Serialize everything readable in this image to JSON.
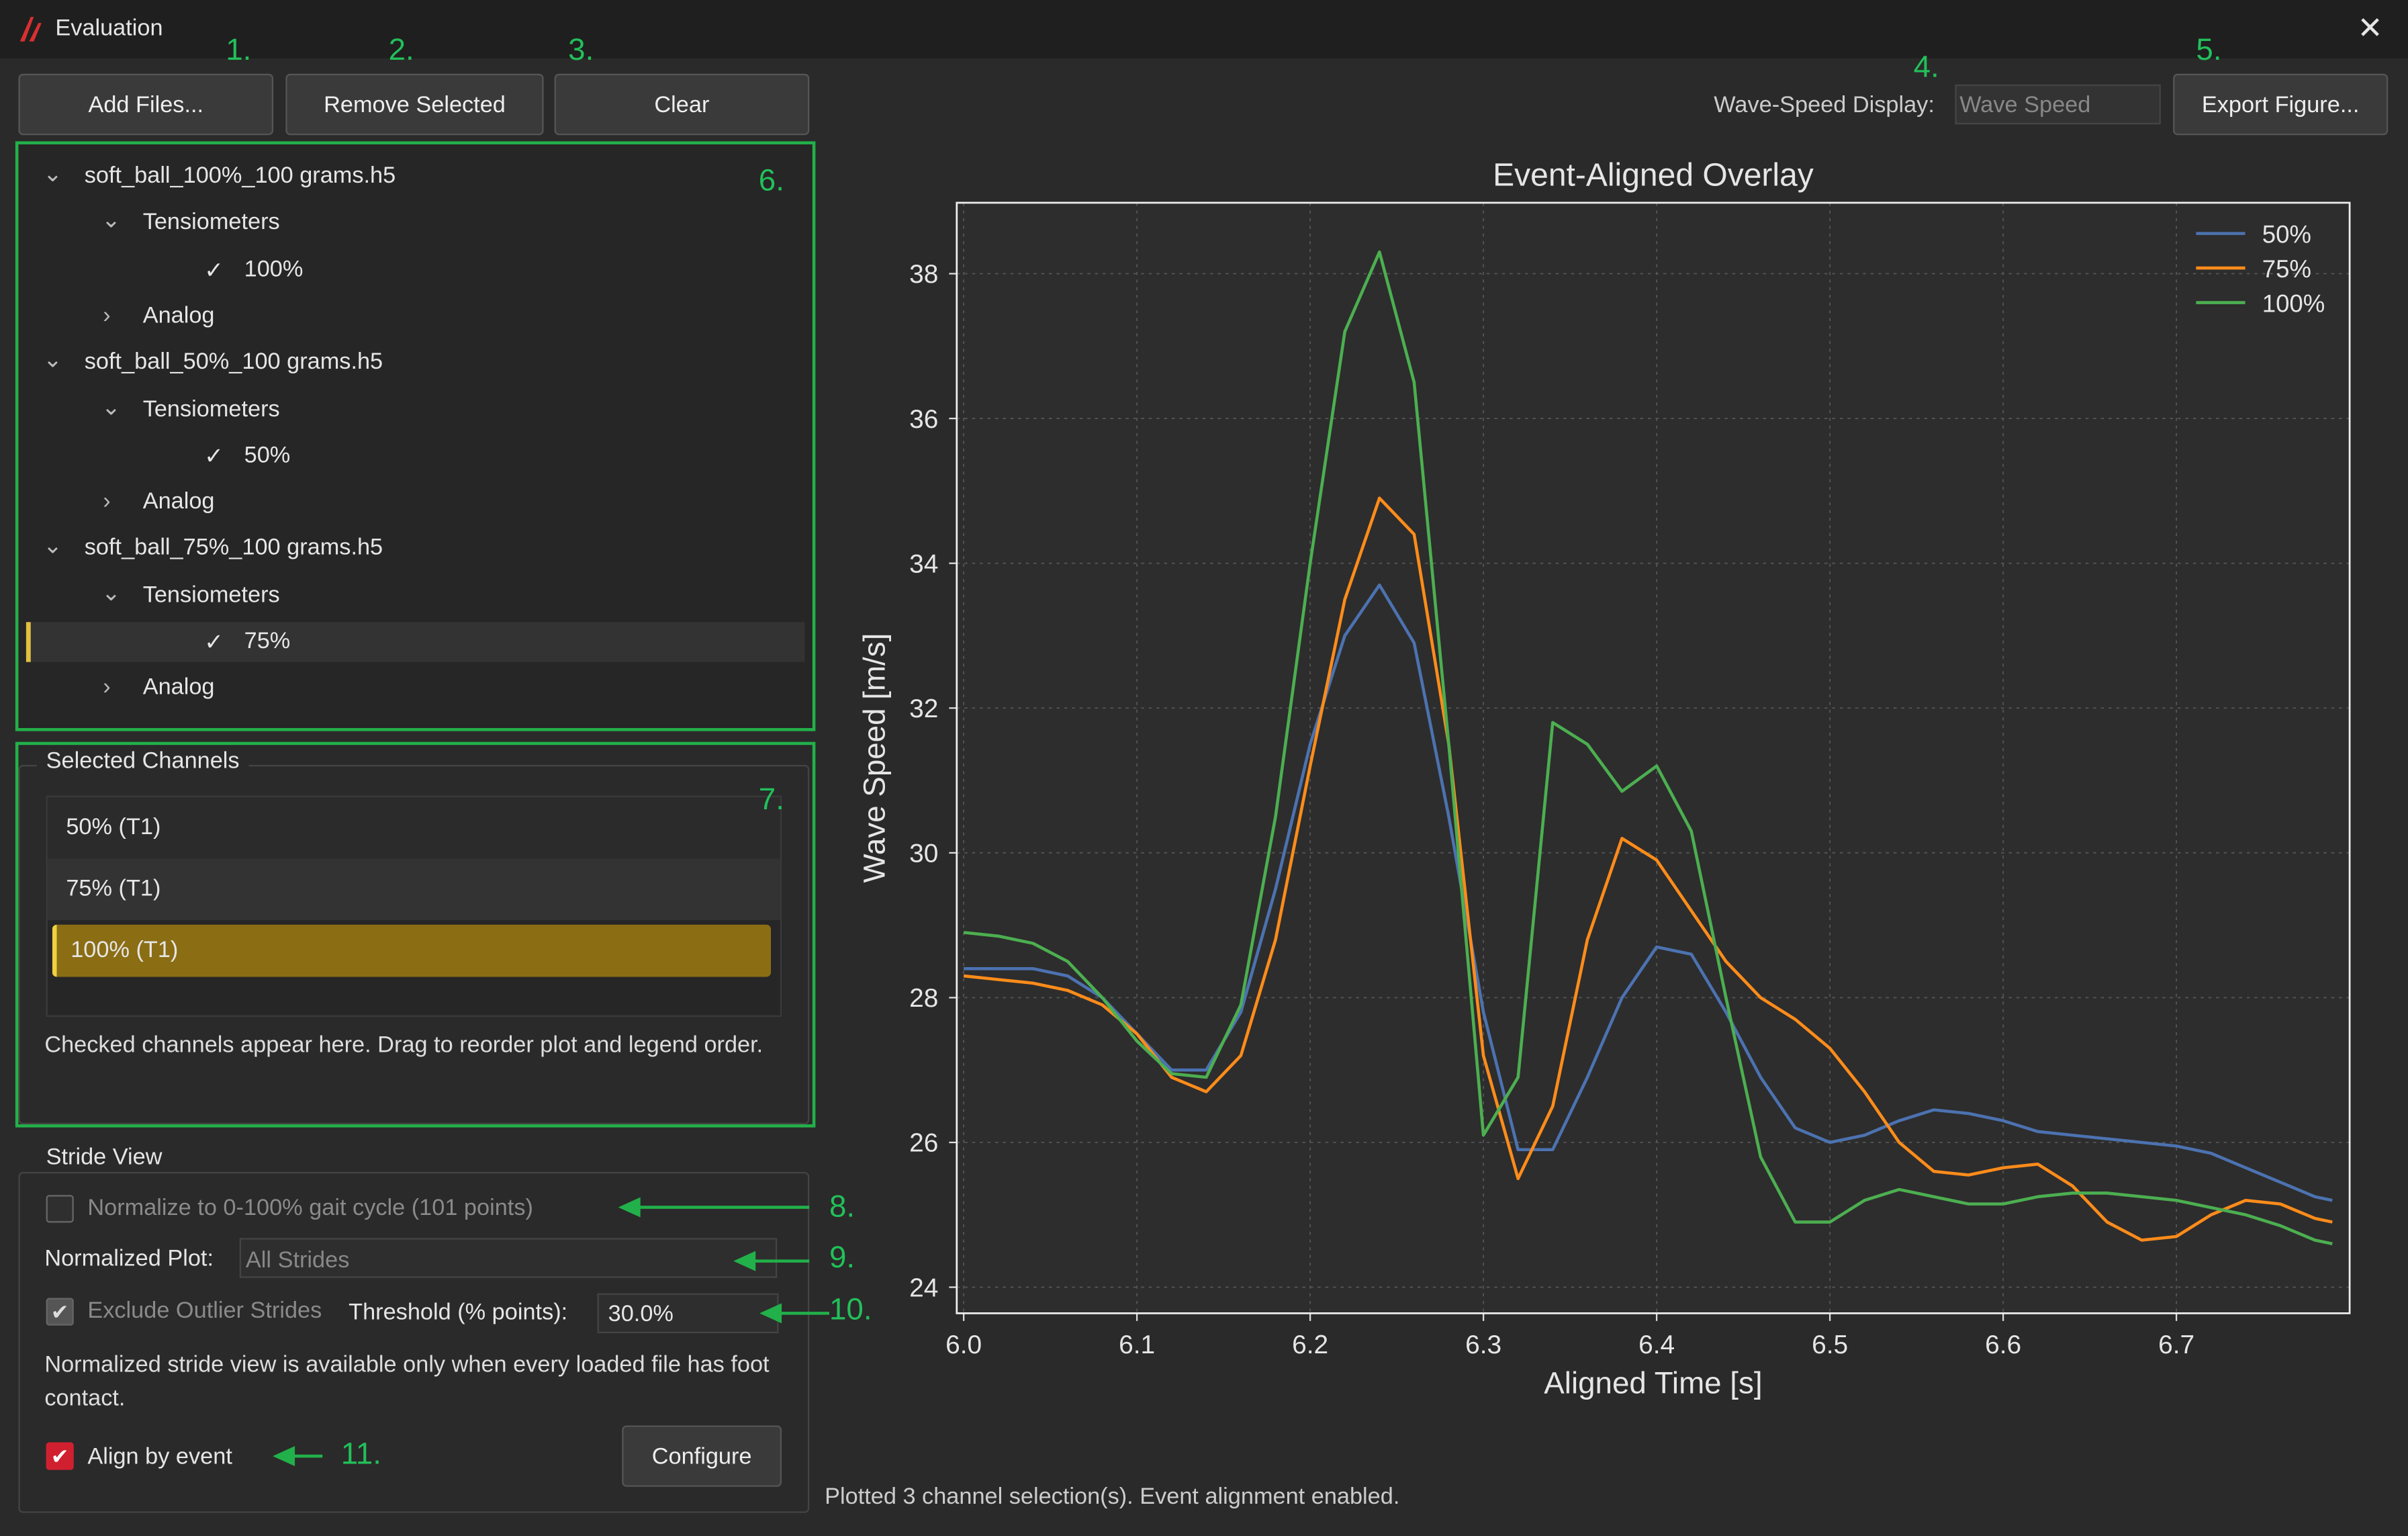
{
  "window": {
    "title": "Evaluation"
  },
  "toolbar": {
    "buttons": [
      "Add Files...",
      "Remove Selected",
      "Clear"
    ],
    "wave_speed_label": "Wave-Speed Display:",
    "wave_speed_value": "Wave Speed",
    "export": "Export Figure..."
  },
  "annotations": [
    "1.",
    "2.",
    "3.",
    "4.",
    "5.",
    "6.",
    "7.",
    "8.",
    "9.",
    "10.",
    "11."
  ],
  "tree": {
    "files": [
      {
        "name": "soft_ball_100%_100 grams.h5",
        "group": "Tensiometers",
        "channel": "100%",
        "other": "Analog"
      },
      {
        "name": "soft_ball_50%_100 grams.h5",
        "group": "Tensiometers",
        "channel": "50%",
        "other": "Analog"
      },
      {
        "name": "soft_ball_75%_100 grams.h5",
        "group": "Tensiometers",
        "channel": "75%",
        "other": "Analog"
      }
    ]
  },
  "selected_channels": {
    "title": "Selected Channels",
    "items": [
      "50% (T1)",
      "75% (T1)",
      "100% (T1)"
    ],
    "hint": "Checked channels appear here. Drag to reorder plot and legend order."
  },
  "stride_view": {
    "title": "Stride View",
    "normalize": "Normalize to 0-100% gait cycle (101 points)",
    "normalized_plot_label": "Normalized Plot:",
    "normalized_plot_value": "All Strides",
    "exclude": "Exclude Outlier Strides",
    "threshold_label": "Threshold (% points):",
    "threshold_value": "30.0%",
    "note": "Normalized stride view is available only when every loaded file has foot contact.",
    "align": "Align by event",
    "configure": "Configure"
  },
  "status": "Plotted 3 channel selection(s). Event alignment enabled.",
  "chart_data": {
    "type": "line",
    "title": "Event-Aligned Overlay",
    "x_label": "Aligned Time [s]",
    "y_label": "Wave Speed [m/s]",
    "x": [
      6.0,
      6.02,
      6.04,
      6.06,
      6.08,
      6.1,
      6.12,
      6.14,
      6.16,
      6.18,
      6.2,
      6.22,
      6.24,
      6.26,
      6.28,
      6.3,
      6.32,
      6.34,
      6.36,
      6.38,
      6.4,
      6.42,
      6.44,
      6.46,
      6.48,
      6.5,
      6.52,
      6.54,
      6.56,
      6.58,
      6.6,
      6.62,
      6.64,
      6.66,
      6.68,
      6.7,
      6.72,
      6.74,
      6.76,
      6.78,
      6.79
    ],
    "series": [
      {
        "name": "50%",
        "color": "#4c72b0",
        "values": [
          28.4,
          28.4,
          28.4,
          28.3,
          28.0,
          27.5,
          27.0,
          27.0,
          27.8,
          29.5,
          31.5,
          33.0,
          33.7,
          32.9,
          30.5,
          27.8,
          25.9,
          25.9,
          26.9,
          28.0,
          28.7,
          28.6,
          27.8,
          26.9,
          26.2,
          26.0,
          26.1,
          26.3,
          26.45,
          26.4,
          26.3,
          26.15,
          26.1,
          26.05,
          26.0,
          25.95,
          25.85,
          25.65,
          25.45,
          25.25,
          25.2
        ]
      },
      {
        "name": "75%",
        "color": "#ff8c1a",
        "values": [
          28.3,
          28.25,
          28.2,
          28.1,
          27.9,
          27.5,
          26.9,
          26.7,
          27.2,
          28.8,
          31.2,
          33.5,
          34.9,
          34.4,
          31.5,
          27.2,
          25.5,
          26.5,
          28.8,
          30.2,
          29.9,
          29.2,
          28.5,
          28.0,
          27.7,
          27.3,
          26.7,
          26.0,
          25.6,
          25.55,
          25.65,
          25.7,
          25.4,
          24.9,
          24.65,
          24.7,
          25.0,
          25.2,
          25.15,
          24.95,
          24.9
        ]
      },
      {
        "name": "100%",
        "color": "#4caf50",
        "values": [
          28.9,
          28.85,
          28.75,
          28.5,
          28.0,
          27.4,
          26.95,
          26.9,
          27.9,
          30.5,
          34.0,
          37.2,
          38.3,
          36.5,
          31.5,
          26.1,
          26.9,
          31.8,
          31.5,
          30.85,
          31.2,
          30.3,
          28.0,
          25.8,
          24.9,
          24.9,
          25.2,
          25.35,
          25.25,
          25.15,
          25.15,
          25.25,
          25.3,
          25.3,
          25.25,
          25.2,
          25.1,
          25.0,
          24.85,
          24.65,
          24.6
        ]
      }
    ],
    "xlim": [
      5.996,
      6.8
    ],
    "ylim": [
      23.64,
      38.98
    ],
    "xticks": [
      {
        "value": 6.0,
        "label": "6.0"
      },
      6.1,
      6.2,
      6.3,
      6.4,
      6.5,
      6.6,
      6.7
    ],
    "yticks": [
      24,
      26,
      28,
      30,
      32,
      34,
      36,
      38
    ],
    "grid": true,
    "legend": "upper right"
  }
}
